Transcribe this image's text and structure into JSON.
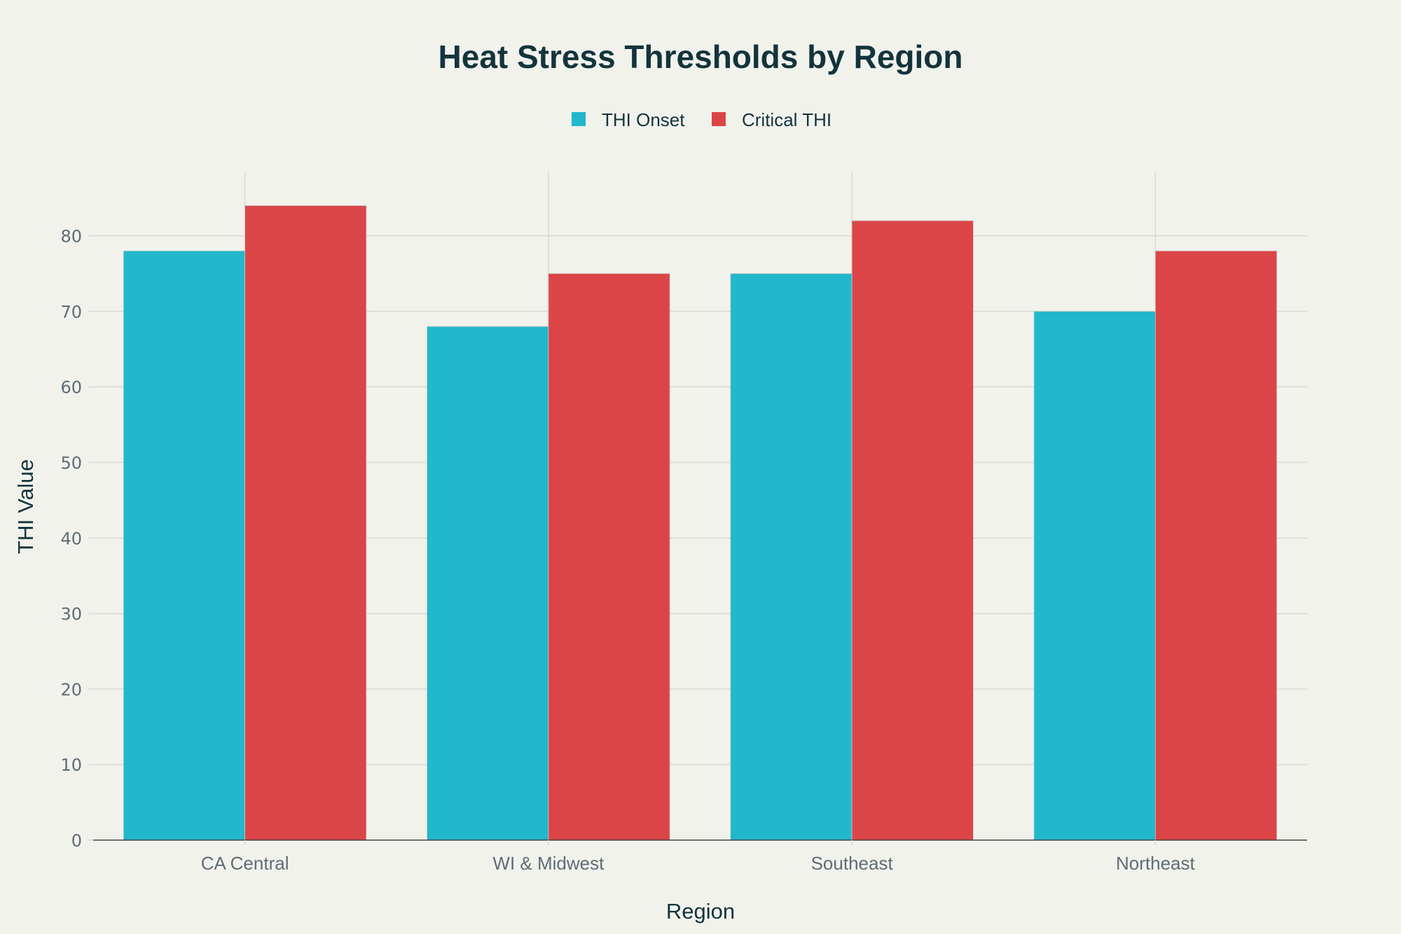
{
  "chart_data": {
    "type": "bar",
    "title": "Heat Stress Thresholds by Region",
    "xlabel": "Region",
    "ylabel": "THI Value",
    "categories": [
      "CA Central",
      "WI & Midwest",
      "Southeast",
      "Northeast"
    ],
    "series": [
      {
        "name": "THI Onset",
        "color": "#21b7cc",
        "values": [
          78,
          68,
          75,
          70
        ]
      },
      {
        "name": "Critical THI",
        "color": "#db4547",
        "values": [
          84,
          75,
          82,
          78
        ]
      }
    ],
    "yticks": [
      0,
      10,
      20,
      30,
      40,
      50,
      60,
      70,
      80
    ],
    "ytick_labels": [
      "0",
      "10",
      "20",
      "30",
      "40",
      "50",
      "60",
      "70",
      "80"
    ],
    "ylim": [
      0,
      88.4
    ],
    "grid": true,
    "legend_position": "top-center"
  }
}
